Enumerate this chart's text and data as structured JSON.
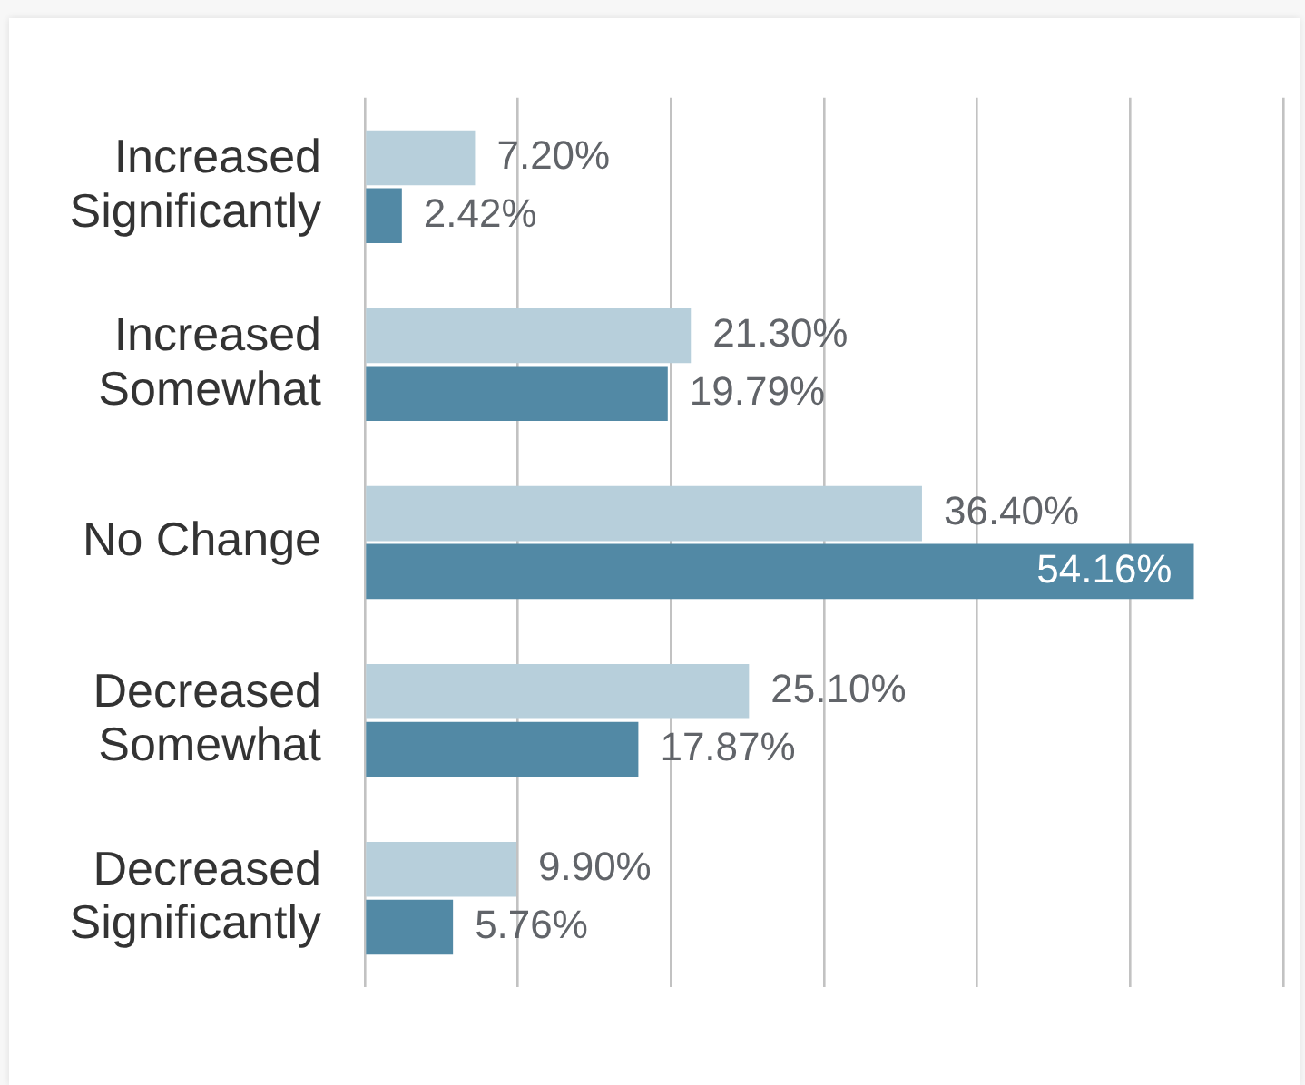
{
  "chart_data": {
    "type": "bar",
    "orientation": "horizontal",
    "categories": [
      "Increased Significantly",
      "Increased Somewhat",
      "No Change",
      "Decreased Somewhat",
      "Decreased Significantly"
    ],
    "series": [
      {
        "color": "#b7cfdb",
        "values": [
          7.2,
          21.3,
          36.4,
          25.1,
          9.9
        ],
        "value_labels": [
          "7.20%",
          "21.30%",
          "36.40%",
          "25.10%",
          "9.90%"
        ]
      },
      {
        "color": "#5289a5",
        "values": [
          2.42,
          19.79,
          54.16,
          17.87,
          5.76
        ],
        "value_labels": [
          "2.42%",
          "19.79%",
          "54.16%",
          "17.87%",
          "5.76%"
        ]
      }
    ],
    "xlim": [
      0,
      60
    ],
    "xticks": [
      {
        "value": 0,
        "label": null
      },
      {
        "value": 10,
        "label": null
      },
      {
        "value": 20,
        "label": null
      },
      {
        "value": 30,
        "label": null
      },
      {
        "value": 40,
        "label": null
      },
      {
        "value": 50,
        "label": null
      },
      {
        "value": 60,
        "label": null
      }
    ],
    "grid": "x",
    "tick_labels": "y",
    "legend": false
  }
}
